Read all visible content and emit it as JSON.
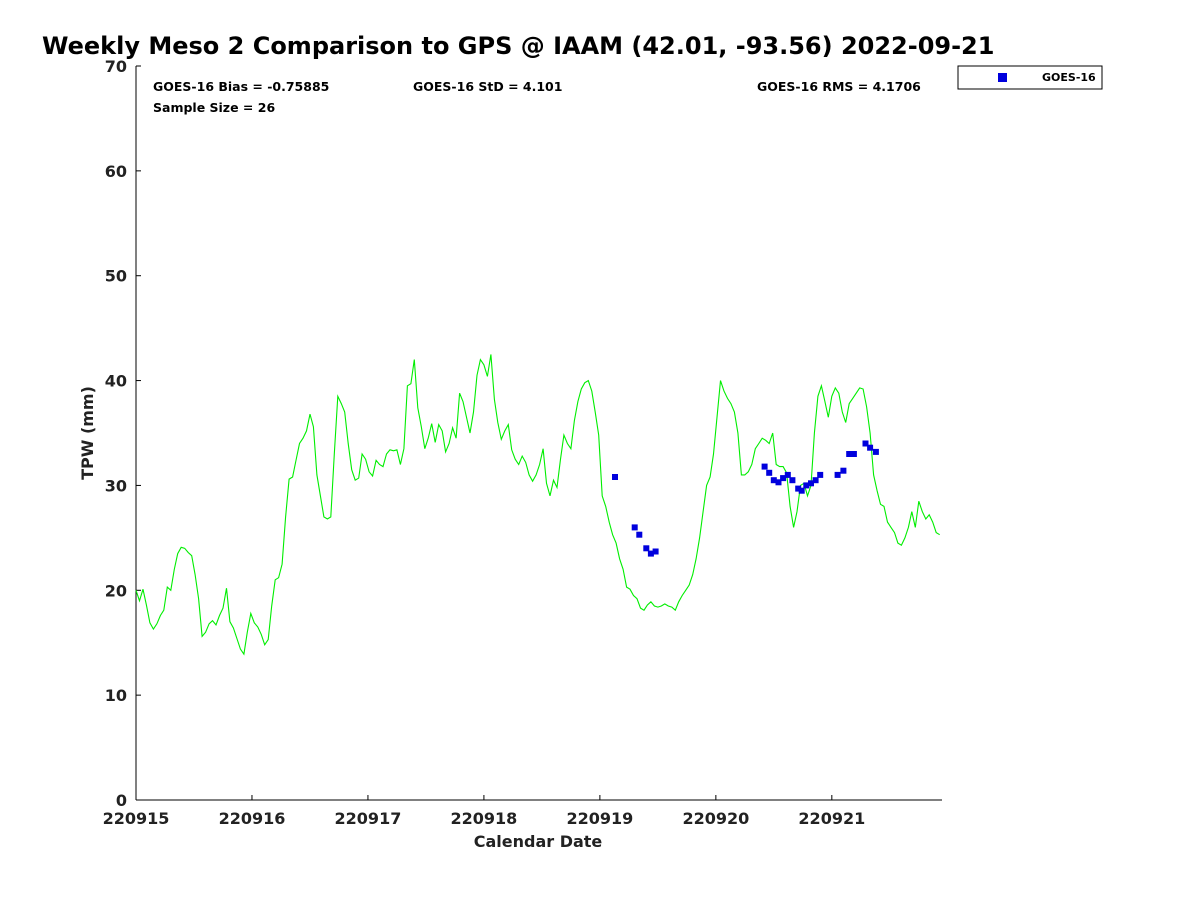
{
  "chart_data": {
    "type": "line",
    "title": "Weekly Meso 2 Comparison to GPS @ IAAM (42.01, -93.56) 2022-09-21",
    "xlabel": "Calendar Date",
    "ylabel": "TPW (mm)",
    "xlim": [
      0,
      6.95
    ],
    "ylim": [
      0,
      70
    ],
    "x_ticks": [
      0,
      1,
      2,
      3,
      4,
      5,
      6
    ],
    "x_tick_labels": [
      "220915",
      "220916",
      "220917",
      "220918",
      "220919",
      "220920",
      "220921"
    ],
    "y_ticks": [
      0,
      10,
      20,
      30,
      40,
      50,
      60,
      70
    ],
    "y_tick_labels": [
      "0",
      "10",
      "20",
      "30",
      "40",
      "50",
      "60",
      "70"
    ],
    "stats": {
      "bias": "GOES-16 Bias = -0.75885",
      "std": "GOES-16 StD = 4.101",
      "rms": "GOES-16 RMS = 4.1706",
      "sample": "Sample Size = 26"
    },
    "legend": {
      "placement": "top-right-outside",
      "entries": [
        "GOES-16"
      ]
    },
    "series": [
      {
        "name": "GPS",
        "style": "line",
        "color": "#00ee00",
        "x": [
          0,
          0.03,
          0.06,
          0.09,
          0.12,
          0.15,
          0.18,
          0.21,
          0.24,
          0.27,
          0.3,
          0.33,
          0.36,
          0.39,
          0.42,
          0.45,
          0.48,
          0.51,
          0.54,
          0.57,
          0.6,
          0.63,
          0.66,
          0.69,
          0.72,
          0.75,
          0.78,
          0.81,
          0.84,
          0.87,
          0.9,
          0.93,
          0.96,
          0.99,
          1.02,
          1.05,
          1.08,
          1.11,
          1.14,
          1.17,
          1.2,
          1.23,
          1.26,
          1.29,
          1.32,
          1.35,
          1.38,
          1.41,
          1.44,
          1.47,
          1.5,
          1.53,
          1.56,
          1.59,
          1.62,
          1.65,
          1.68,
          1.71,
          1.74,
          1.77,
          1.8,
          1.83,
          1.86,
          1.89,
          1.92,
          1.95,
          1.98,
          2.01,
          2.04,
          2.07,
          2.1,
          2.13,
          2.16,
          2.19,
          2.22,
          2.25,
          2.28,
          2.31,
          2.34,
          2.37,
          2.4,
          2.43,
          2.46,
          2.49,
          2.52,
          2.55,
          2.58,
          2.61,
          2.64,
          2.67,
          2.7,
          2.73,
          2.76,
          2.79,
          2.82,
          2.85,
          2.88,
          2.91,
          2.94,
          2.97,
          3.0,
          3.03,
          3.06,
          3.09,
          3.12,
          3.15,
          3.18,
          3.21,
          3.24,
          3.27,
          3.3,
          3.33,
          3.36,
          3.39,
          3.42,
          3.45,
          3.48,
          3.51,
          3.54,
          3.57,
          3.6,
          3.63,
          3.66,
          3.69,
          3.72,
          3.75,
          3.78,
          3.81,
          3.84,
          3.87,
          3.9,
          3.93,
          3.96,
          3.99,
          4.02,
          4.05,
          4.08,
          4.11,
          4.14,
          4.17,
          4.2,
          4.23,
          4.26,
          4.29,
          4.32,
          4.35,
          4.38,
          4.41,
          4.44,
          4.47,
          4.5,
          4.53,
          4.56,
          4.59,
          4.62,
          4.65,
          4.68,
          4.71,
          4.74,
          4.77,
          4.8,
          4.83,
          4.86,
          4.89,
          4.92,
          4.95,
          4.98,
          5.01,
          5.04,
          5.07,
          5.1,
          5.13,
          5.16,
          5.19,
          5.22,
          5.25,
          5.28,
          5.31,
          5.34,
          5.37,
          5.4,
          5.43,
          5.46,
          5.49,
          5.52,
          5.55,
          5.58,
          5.61,
          5.64,
          5.67,
          5.7,
          5.73,
          5.76,
          5.79,
          5.82,
          5.85,
          5.88,
          5.91,
          5.94,
          5.97,
          6.0,
          6.03,
          6.06,
          6.09,
          6.12,
          6.15,
          6.18,
          6.21,
          6.24,
          6.27,
          6.3,
          6.33,
          6.36,
          6.39,
          6.42,
          6.45,
          6.48,
          6.51,
          6.54,
          6.57,
          6.6,
          6.63,
          6.66,
          6.69,
          6.72,
          6.75,
          6.78,
          6.81,
          6.84,
          6.87,
          6.9,
          6.93
        ],
        "y": [
          20.0,
          19.0,
          20.1,
          18.6,
          16.9,
          16.3,
          16.8,
          17.6,
          18.1,
          20.3,
          20.0,
          22.0,
          23.5,
          24.1,
          24.0,
          23.6,
          23.3,
          21.5,
          19.2,
          15.6,
          16.0,
          16.8,
          17.1,
          16.7,
          17.6,
          18.3,
          20.2,
          17.0,
          16.4,
          15.4,
          14.4,
          13.9,
          16.0,
          17.8,
          16.9,
          16.5,
          15.8,
          14.8,
          15.3,
          18.5,
          21.0,
          21.2,
          22.5,
          27.0,
          30.6,
          30.8,
          32.4,
          34.0,
          34.5,
          35.2,
          36.8,
          35.6,
          31.0,
          29.0,
          27.0,
          26.8,
          27.0,
          33.0,
          38.5,
          37.8,
          37.0,
          34.0,
          31.5,
          30.5,
          30.7,
          33.0,
          32.5,
          31.3,
          30.9,
          32.4,
          32.0,
          31.8,
          33.0,
          33.4,
          33.3,
          33.4,
          32.0,
          33.5,
          39.5,
          39.7,
          42.0,
          37.4,
          35.6,
          33.5,
          34.5,
          35.9,
          34.1,
          35.8,
          35.2,
          33.2,
          34.0,
          35.5,
          34.5,
          38.8,
          38.0,
          36.5,
          35.0,
          37.0,
          40.5,
          42.0,
          41.5,
          40.4,
          42.5,
          38.2,
          36.0,
          34.4,
          35.2,
          35.8,
          33.4,
          32.5,
          32.0,
          32.8,
          32.2,
          31.0,
          30.4,
          31.0,
          32.0,
          33.5,
          30.2,
          29.0,
          30.5,
          29.8,
          32.5,
          34.8,
          34.0,
          33.5,
          36.2,
          38.0,
          39.2,
          39.8,
          40.0,
          39.0,
          37.0,
          34.8,
          29.0,
          28.0,
          26.5,
          25.3,
          24.5,
          23.0,
          22.0,
          20.3,
          20.1,
          19.5,
          19.2,
          18.3,
          18.1,
          18.6,
          18.9,
          18.5,
          18.4,
          18.5,
          18.7,
          18.5,
          18.4,
          18.1,
          18.9,
          19.5,
          20.0,
          20.5,
          21.5,
          23.0,
          25.0,
          27.5,
          30.0,
          30.8,
          33.0,
          36.5,
          40.0,
          39.0,
          38.3,
          37.8,
          37.0,
          35.0,
          31.0,
          31.0,
          31.3,
          32.0,
          33.5,
          34.0,
          34.5,
          34.3,
          34.0,
          35.0,
          32.0,
          31.8,
          31.8,
          31.2,
          28.0,
          26.0,
          27.5,
          30.0,
          30.2,
          29.0,
          30.0,
          35.0,
          38.5,
          39.5,
          38.0,
          36.5,
          38.5,
          39.3,
          38.8,
          37.0,
          36.0,
          37.8,
          38.3,
          38.8,
          39.3,
          39.2,
          37.5,
          35.0,
          31.0,
          29.5,
          28.2,
          28.0,
          26.5,
          26.0,
          25.5,
          24.5,
          24.3,
          25.0,
          26.0,
          27.5,
          26.0,
          28.5,
          27.5,
          26.8,
          27.2,
          26.5,
          25.5,
          25.3
        ]
      },
      {
        "name": "GOES-16",
        "style": "marker",
        "color": "#0000dd",
        "x": [
          4.13,
          4.3,
          4.34,
          4.4,
          4.44,
          4.48,
          5.42,
          5.46,
          5.5,
          5.54,
          5.58,
          5.62,
          5.66,
          5.71,
          5.74,
          5.78,
          5.82,
          5.86,
          5.9,
          6.05,
          6.1,
          6.15,
          6.19,
          6.29,
          6.33,
          6.38
        ],
        "y": [
          30.8,
          26.0,
          25.3,
          24.0,
          23.5,
          23.7,
          31.8,
          31.2,
          30.5,
          30.3,
          30.7,
          31.0,
          30.5,
          29.7,
          29.5,
          30.0,
          30.2,
          30.5,
          31.0,
          31.0,
          31.4,
          33.0,
          33.0,
          34.0,
          33.6,
          33.2
        ]
      }
    ]
  }
}
